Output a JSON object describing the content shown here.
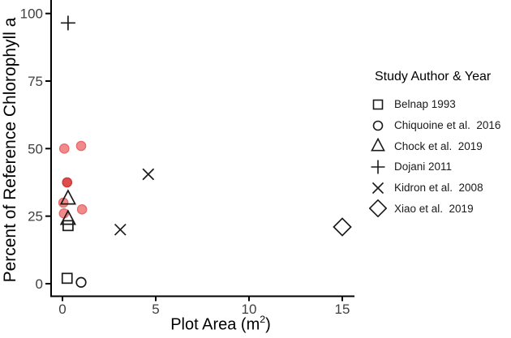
{
  "figure": {
    "background": "#FFFFFF",
    "axis_color": "#000000",
    "marker_color": "#1A1A1A",
    "tick_label_color": "#404040",
    "title_color": "#000000"
  },
  "chart_data": {
    "type": "scatter",
    "xlabel": "Plot Area (m²)",
    "xlabel_parts": {
      "pre": "Plot Area (m",
      "sup": "2",
      "post": ")"
    },
    "ylabel": "Percent of Reference Chlorophyll a",
    "xlim": [
      0,
      15.6
    ],
    "ylim": [
      0,
      105
    ],
    "xticks": [
      0,
      5,
      10,
      15
    ],
    "yticks": [
      0,
      25,
      50,
      75,
      100
    ],
    "grid": false,
    "legend_title": "Study Author & Year",
    "legend_position": "right",
    "series": [
      {
        "name": "Belnap 1993",
        "marker": "square",
        "points": [
          [
            0.3,
            21.5
          ],
          [
            0.25,
            2
          ]
        ]
      },
      {
        "name": "Chiquoine et al.  2016",
        "marker": "circle",
        "points": [
          [
            1.0,
            0.5
          ]
        ]
      },
      {
        "name": "Chock et al.  2019",
        "marker": "triangle",
        "points": [
          [
            0.3,
            31.5
          ],
          [
            0.3,
            24
          ]
        ]
      },
      {
        "name": "Dojani 2011",
        "marker": "plus",
        "points": [
          [
            0.3,
            96.5
          ]
        ]
      },
      {
        "name": "Kidron et al.  2008",
        "marker": "x",
        "points": [
          [
            3.1,
            20
          ],
          [
            4.6,
            40.5
          ]
        ]
      },
      {
        "name": "Xiao et al.  2019",
        "marker": "diamond",
        "points": [
          [
            15,
            21
          ]
        ]
      }
    ],
    "filled_circles": {
      "fill": "#F18B8B",
      "stroke": "#E56D6D",
      "points": [
        [
          0.1,
          50
        ],
        [
          1.0,
          51
        ],
        [
          0.05,
          30
        ],
        [
          0.08,
          26
        ],
        [
          1.05,
          27.5
        ]
      ]
    },
    "filled_circles_dark": {
      "fill": "#E14C4C",
      "stroke": "#CF3838",
      "points": [
        [
          0.25,
          37.5
        ]
      ]
    }
  }
}
